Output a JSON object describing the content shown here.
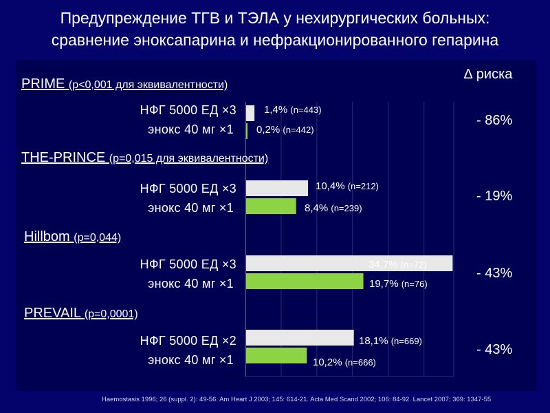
{
  "title": {
    "line1": "Предупреждение ТГВ и ТЭЛА у нехирургических больных:",
    "line2": "сравнение эноксапарина и нефракционированного гепарина"
  },
  "delta_header": "∆ риска",
  "colors": {
    "background": "#03036b",
    "panel": "#000052",
    "ufh_bar": "#e8e8e8",
    "enox_bar": "#8cd443"
  },
  "studies": [
    {
      "name": "PRIME",
      "p": "(p<0,001 для эквивалентности)",
      "ufh_label": "НФГ 5000 ЕД ×3",
      "enox_label": "энокс  40  мг  ×1",
      "ufh_pct": "1,4%",
      "ufh_n": "(n=443)",
      "enox_pct": "0,2%",
      "enox_n": "(n=442)",
      "delta": "- 86%"
    },
    {
      "name": "THE-PRINCE",
      "p": "(p=0,015 для эквивалентности)",
      "ufh_label": "НФГ 5000 ЕД ×3",
      "enox_label": "энокс  40  мг  ×1",
      "ufh_pct": "10,4%",
      "ufh_n": "(n=212)",
      "enox_pct": "8,4%",
      "enox_n": "(n=239)",
      "delta": "- 19%"
    },
    {
      "name": "Hillbom",
      "p": "(p=0,044)",
      "ufh_label": "НФГ 5000 ЕД ×3",
      "enox_label": "энокс  40  мг  ×1",
      "ufh_pct": "34,7%",
      "ufh_n": "(n=72)",
      "enox_pct": "19,7%",
      "enox_n": "(n=76)",
      "delta": "- 43%"
    },
    {
      "name": "PREVAIL",
      "p": "(p=0,0001)",
      "ufh_label": "НФГ 5000 ЕД ×2",
      "enox_label": "энокс  40  мг  ×1",
      "ufh_pct": "18,1%",
      "ufh_n": "(n=669)",
      "enox_pct": "10,2%",
      "enox_n": "(n=666)",
      "delta": "- 43%"
    }
  ],
  "references": "Haemostasis 1996; 26 (suppl. 2): 49-56. Am Heart J 2003; 145: 614-21. Acta Med Scand 2002; 106: 84-92. Lancet 2007; 369: 1347-55",
  "chart_data": {
    "type": "bar",
    "orientation": "horizontal",
    "categories": [
      "PRIME",
      "THE-PRINCE",
      "Hillbom",
      "PREVAIL"
    ],
    "series": [
      {
        "name": "НФГ",
        "values": [
          1.4,
          10.4,
          34.7,
          18.1
        ]
      },
      {
        "name": "энокс",
        "values": [
          0.2,
          8.4,
          19.7,
          10.2
        ]
      }
    ],
    "xlim": [
      0,
      35
    ],
    "grid": true
  }
}
